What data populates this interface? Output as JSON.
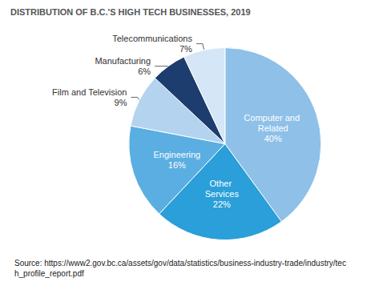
{
  "chart_data": {
    "type": "pie",
    "title": "DISTRIBUTION OF B.C.'S HIGH TECH BUSINESSES, 2019",
    "source": "Source: https://www2.gov.bc.ca/assets/gov/data/statistics/business-industry-trade/industry/tech_profile_report.pdf",
    "categories": [
      "Computer and Related",
      "Other Services",
      "Engineering",
      "Film and Television",
      "Manufacturing",
      "Telecommunications"
    ],
    "values": [
      40,
      22,
      16,
      9,
      6,
      7
    ],
    "value_labels": [
      "40%",
      "22%",
      "16%",
      "9%",
      "6%",
      "7%"
    ],
    "colors": [
      "#8ec0e8",
      "#2a9fd9",
      "#5aaee1",
      "#b3d3ef",
      "#1c3d6e",
      "#d5e6f6"
    ],
    "data_labels": true
  }
}
